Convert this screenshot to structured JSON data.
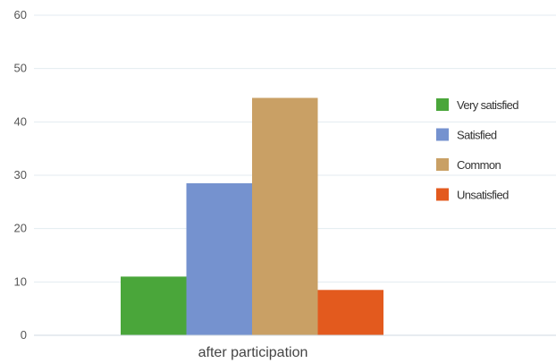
{
  "chart_data": {
    "type": "bar",
    "title": "",
    "xlabel": "",
    "ylabel": "",
    "categories": [
      "after participation"
    ],
    "series": [
      {
        "name": "Very satisfied",
        "values": [
          11
        ],
        "color": "#4aa63a"
      },
      {
        "name": "Satisfied",
        "values": [
          28.5
        ],
        "color": "#7592cf"
      },
      {
        "name": "Common",
        "values": [
          44.5
        ],
        "color": "#c9a065"
      },
      {
        "name": "Unsatisfied",
        "values": [
          8.5
        ],
        "color": "#e35a1e"
      }
    ],
    "ylim": [
      0,
      60
    ],
    "yticks": [
      "0",
      "10",
      "20",
      "30",
      "40",
      "50",
      "60"
    ],
    "grid": true,
    "legend": "right"
  }
}
